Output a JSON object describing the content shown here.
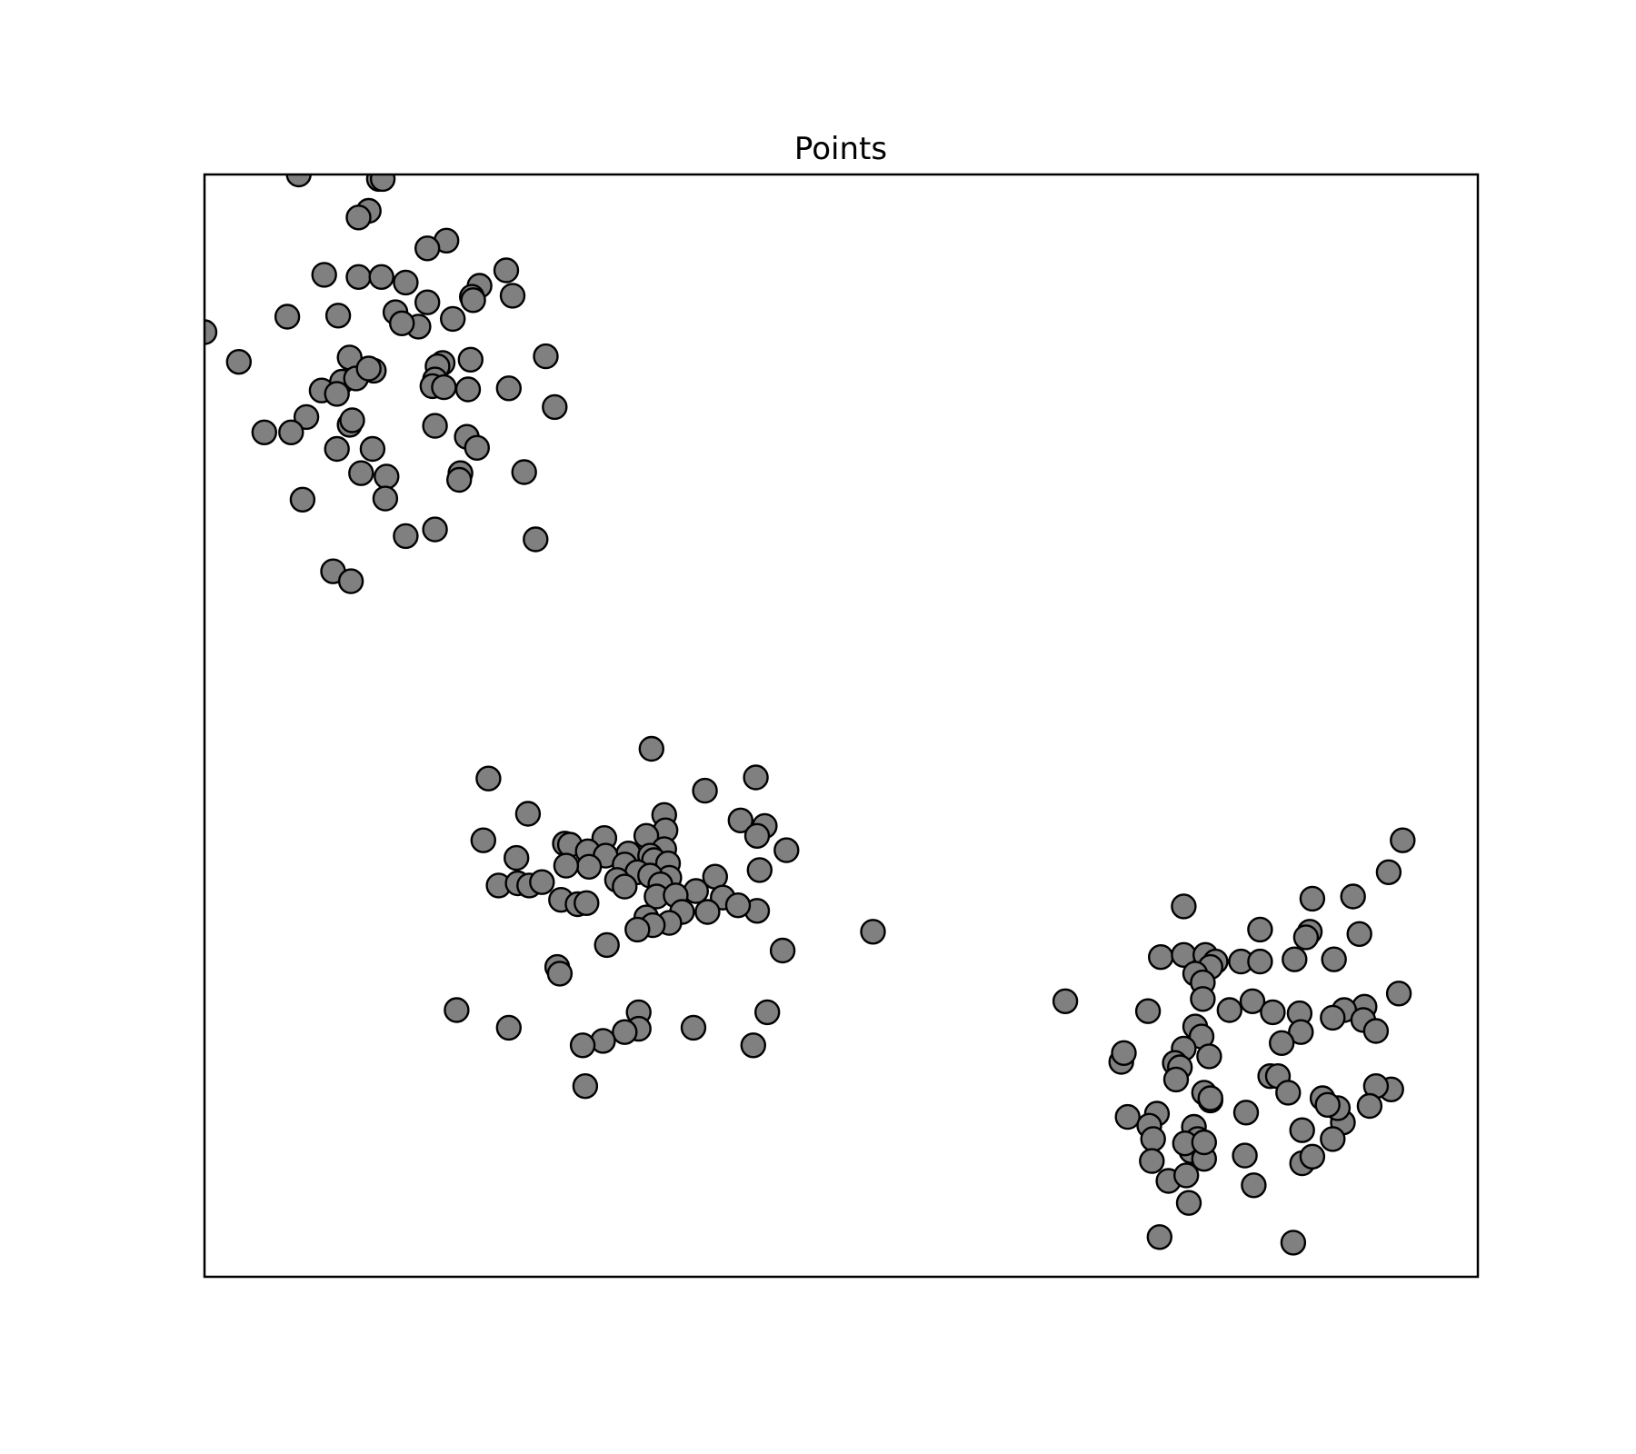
{
  "colors": {
    "marker_fill": "#808080",
    "marker_edge": "#000000",
    "frame": "#000000",
    "background": "#ffffff"
  },
  "chart_data": {
    "type": "scatter",
    "title": "Points",
    "xlabel": "",
    "ylabel": "",
    "xlim": [
      0,
      100
    ],
    "ylim": [
      0,
      100
    ],
    "xticks": [],
    "yticks": [],
    "grid": false,
    "legend": "none",
    "series": [
      {
        "points": [
          [
            7.4,
            100.0
          ],
          [
            13.7,
            99.6
          ],
          [
            14.0,
            99.6
          ],
          [
            12.9,
            96.7
          ],
          [
            12.1,
            96.1
          ],
          [
            19.0,
            94.0
          ],
          [
            17.5,
            93.3
          ],
          [
            9.4,
            90.9
          ],
          [
            12.1,
            90.7
          ],
          [
            13.9,
            90.7
          ],
          [
            15.8,
            90.2
          ],
          [
            23.7,
            91.3
          ],
          [
            21.6,
            89.9
          ],
          [
            21.0,
            88.9
          ],
          [
            24.2,
            89.0
          ],
          [
            21.1,
            88.6
          ],
          [
            17.5,
            88.4
          ],
          [
            6.5,
            87.1
          ],
          [
            15.0,
            87.5
          ],
          [
            10.5,
            87.2
          ],
          [
            19.5,
            86.9
          ],
          [
            16.8,
            86.2
          ],
          [
            15.5,
            86.5
          ],
          [
            0.0,
            85.7
          ],
          [
            11.4,
            83.4
          ],
          [
            26.8,
            83.5
          ],
          [
            2.7,
            83.0
          ],
          [
            18.7,
            82.9
          ],
          [
            18.3,
            82.6
          ],
          [
            20.9,
            83.2
          ],
          [
            13.3,
            82.2
          ],
          [
            10.8,
            81.2
          ],
          [
            11.9,
            81.5
          ],
          [
            12.9,
            82.4
          ],
          [
            18.1,
            81.4
          ],
          [
            17.9,
            80.8
          ],
          [
            18.8,
            80.7
          ],
          [
            20.7,
            80.5
          ],
          [
            23.9,
            80.6
          ],
          [
            9.2,
            80.4
          ],
          [
            10.4,
            80.1
          ],
          [
            27.5,
            78.9
          ],
          [
            8.0,
            78.0
          ],
          [
            11.4,
            77.3
          ],
          [
            11.6,
            77.7
          ],
          [
            18.1,
            77.2
          ],
          [
            4.7,
            76.6
          ],
          [
            6.8,
            76.6
          ],
          [
            20.6,
            76.2
          ],
          [
            10.4,
            75.1
          ],
          [
            13.2,
            75.1
          ],
          [
            21.4,
            75.2
          ],
          [
            20.1,
            72.9
          ],
          [
            20.0,
            72.3
          ],
          [
            25.1,
            73.0
          ],
          [
            12.3,
            72.9
          ],
          [
            14.3,
            72.6
          ],
          [
            14.2,
            70.6
          ],
          [
            7.7,
            70.5
          ],
          [
            18.1,
            67.8
          ],
          [
            15.8,
            67.2
          ],
          [
            26.0,
            66.9
          ],
          [
            10.1,
            64.0
          ],
          [
            11.5,
            63.1
          ],
          [
            35.1,
            47.9
          ],
          [
            22.3,
            45.2
          ],
          [
            43.3,
            45.3
          ],
          [
            39.3,
            44.1
          ],
          [
            25.4,
            42.0
          ],
          [
            36.1,
            41.9
          ],
          [
            42.1,
            41.4
          ],
          [
            44.0,
            40.9
          ],
          [
            43.4,
            40.0
          ],
          [
            36.2,
            40.5
          ],
          [
            21.9,
            39.6
          ],
          [
            31.4,
            39.8
          ],
          [
            28.3,
            39.3
          ],
          [
            34.7,
            40.0
          ],
          [
            45.7,
            38.7
          ],
          [
            33.3,
            38.4
          ],
          [
            28.7,
            39.2
          ],
          [
            36.1,
            38.8
          ],
          [
            35.0,
            38.2
          ],
          [
            30.1,
            38.6
          ],
          [
            31.5,
            38.2
          ],
          [
            35.3,
            37.8
          ],
          [
            36.4,
            37.5
          ],
          [
            30.2,
            37.2
          ],
          [
            33.0,
            37.4
          ],
          [
            24.5,
            38.0
          ],
          [
            28.4,
            37.3
          ],
          [
            34.0,
            36.7
          ],
          [
            43.6,
            36.9
          ],
          [
            40.1,
            36.3
          ],
          [
            32.4,
            36.0
          ],
          [
            36.5,
            36.2
          ],
          [
            23.1,
            35.5
          ],
          [
            24.6,
            35.7
          ],
          [
            25.5,
            35.5
          ],
          [
            26.5,
            35.8
          ],
          [
            35.0,
            36.4
          ],
          [
            33.0,
            35.4
          ],
          [
            35.8,
            35.6
          ],
          [
            38.6,
            35.0
          ],
          [
            28.0,
            34.2
          ],
          [
            29.3,
            33.8
          ],
          [
            30.0,
            33.9
          ],
          [
            35.5,
            34.5
          ],
          [
            37.0,
            34.6
          ],
          [
            40.7,
            34.4
          ],
          [
            52.5,
            31.3
          ],
          [
            39.5,
            33.1
          ],
          [
            43.4,
            33.2
          ],
          [
            41.9,
            33.7
          ],
          [
            34.7,
            32.6
          ],
          [
            37.5,
            33.1
          ],
          [
            36.5,
            32.1
          ],
          [
            35.2,
            31.9
          ],
          [
            34.0,
            31.5
          ],
          [
            31.6,
            30.1
          ],
          [
            45.4,
            29.6
          ],
          [
            27.7,
            28.1
          ],
          [
            27.9,
            27.5
          ],
          [
            34.1,
            24.0
          ],
          [
            19.8,
            24.2
          ],
          [
            44.2,
            24.0
          ],
          [
            23.9,
            22.6
          ],
          [
            34.1,
            22.5
          ],
          [
            38.4,
            22.6
          ],
          [
            33.0,
            22.2
          ],
          [
            31.3,
            21.4
          ],
          [
            43.1,
            21.0
          ],
          [
            29.7,
            21.0
          ],
          [
            29.9,
            17.3
          ],
          [
            94.1,
            39.6
          ],
          [
            93.0,
            36.7
          ],
          [
            76.9,
            33.6
          ],
          [
            87.0,
            34.3
          ],
          [
            90.2,
            34.5
          ],
          [
            82.9,
            31.5
          ],
          [
            86.8,
            31.3
          ],
          [
            90.7,
            31.1
          ],
          [
            86.5,
            30.8
          ],
          [
            75.1,
            29.0
          ],
          [
            76.9,
            29.2
          ],
          [
            78.6,
            29.2
          ],
          [
            79.4,
            28.6
          ],
          [
            85.6,
            28.8
          ],
          [
            88.7,
            28.8
          ],
          [
            79.0,
            28.1
          ],
          [
            81.4,
            28.6
          ],
          [
            82.9,
            28.6
          ],
          [
            77.8,
            27.5
          ],
          [
            78.4,
            26.7
          ],
          [
            93.8,
            25.7
          ],
          [
            67.6,
            25.0
          ],
          [
            78.4,
            25.2
          ],
          [
            82.3,
            25.0
          ],
          [
            91.1,
            24.5
          ],
          [
            89.5,
            24.2
          ],
          [
            74.1,
            24.1
          ],
          [
            80.5,
            24.2
          ],
          [
            83.9,
            24.0
          ],
          [
            86.0,
            23.9
          ],
          [
            91.0,
            23.3
          ],
          [
            88.6,
            23.5
          ],
          [
            77.8,
            22.7
          ],
          [
            86.1,
            22.2
          ],
          [
            92.0,
            22.3
          ],
          [
            78.3,
            21.8
          ],
          [
            84.6,
            21.2
          ],
          [
            76.9,
            20.7
          ],
          [
            78.9,
            20.0
          ],
          [
            76.2,
            19.4
          ],
          [
            72.0,
            19.5
          ],
          [
            76.6,
            19.0
          ],
          [
            83.7,
            18.2
          ],
          [
            84.3,
            18.2
          ],
          [
            76.3,
            17.9
          ],
          [
            78.5,
            16.7
          ],
          [
            87.8,
            16.2
          ],
          [
            93.2,
            17.0
          ],
          [
            92.0,
            17.3
          ],
          [
            85.1,
            16.7
          ],
          [
            72.5,
            14.5
          ],
          [
            89.4,
            14.0
          ],
          [
            79.0,
            16.0
          ],
          [
            81.8,
            14.9
          ],
          [
            74.8,
            14.8
          ],
          [
            79.0,
            16.2
          ],
          [
            89.0,
            15.3
          ],
          [
            88.2,
            15.6
          ],
          [
            91.5,
            15.5
          ],
          [
            74.2,
            13.7
          ],
          [
            77.7,
            13.6
          ],
          [
            78.0,
            12.5
          ],
          [
            86.2,
            13.3
          ],
          [
            88.6,
            12.5
          ],
          [
            74.5,
            12.5
          ],
          [
            77.5,
            11.4
          ],
          [
            78.5,
            10.7
          ],
          [
            77.0,
            12.1
          ],
          [
            78.5,
            12.2
          ],
          [
            74.4,
            10.5
          ],
          [
            86.2,
            10.3
          ],
          [
            75.0,
            3.6
          ],
          [
            85.5,
            3.1
          ],
          [
            75.7,
            8.7
          ],
          [
            77.1,
            9.2
          ],
          [
            77.3,
            6.7
          ],
          [
            82.4,
            8.3
          ],
          [
            81.7,
            11.0
          ],
          [
            87.0,
            10.9
          ],
          [
            72.2,
            20.3
          ]
        ]
      }
    ]
  }
}
